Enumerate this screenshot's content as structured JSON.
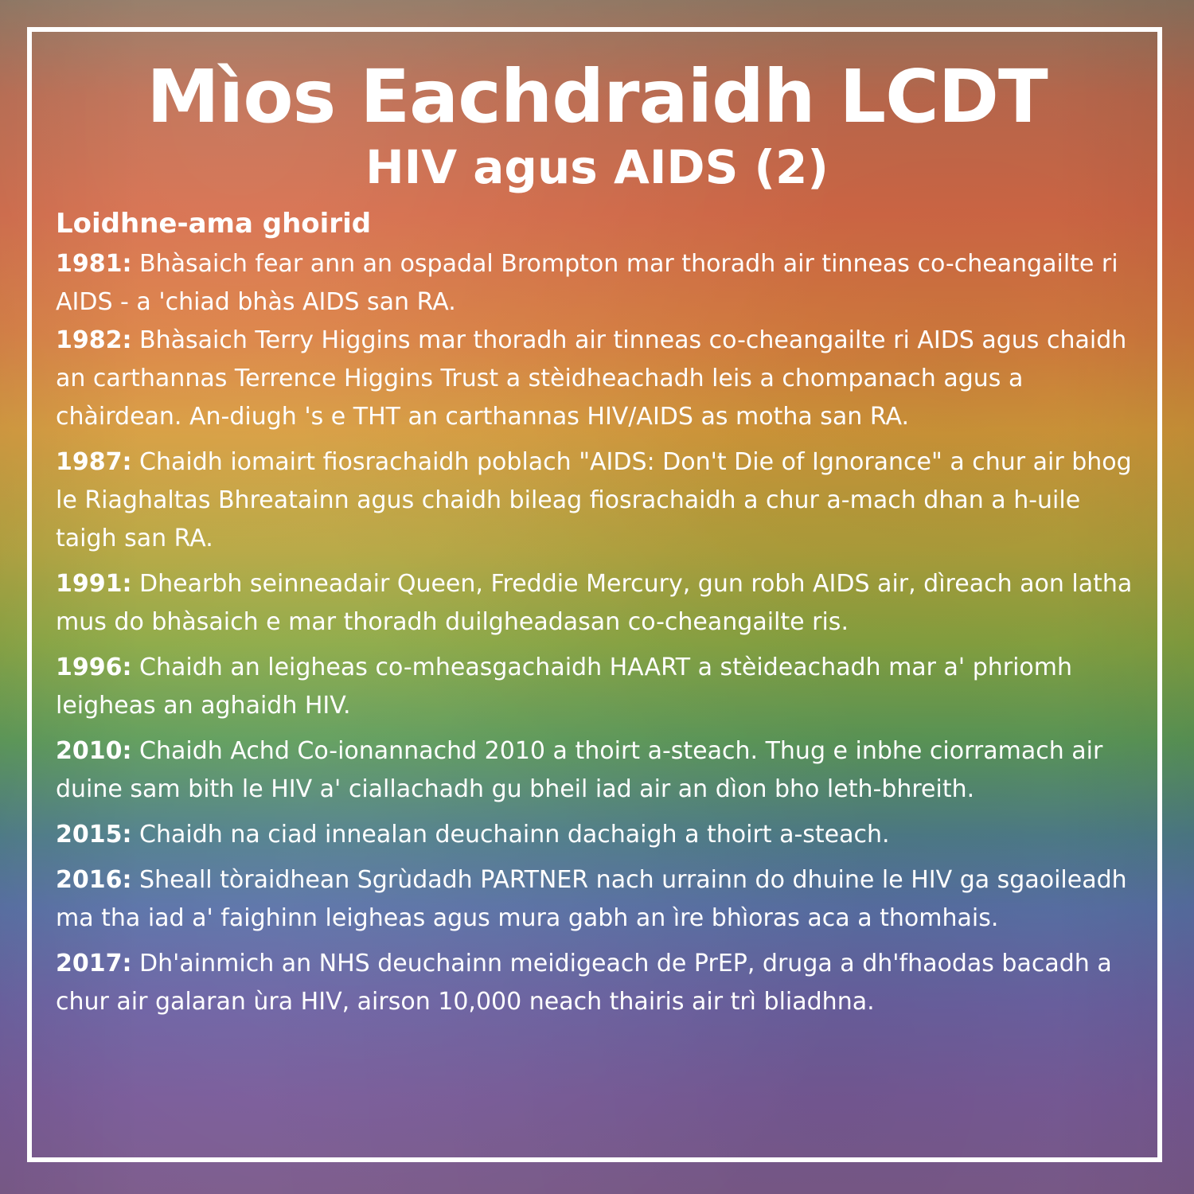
{
  "title": "Mìos Eachdraidh LCDT",
  "subtitle": "HIV agus AIDS (2)",
  "section_heading": "Loidhne-ama ghoirid",
  "timeline": [
    {
      "year": "1981:",
      "text": "Bhàsaich fear ann an ospadal Brompton mar thoradh air tinneas co-cheangailte ri AIDS - a 'chiad bhàs AIDS san RA."
    },
    {
      "year": "1982:",
      "text": "Bhàsaich Terry Higgins mar thoradh air tinneas co-cheangailte ri AIDS agus chaidh an carthannas Terrence Higgins Trust a stèidheachadh leis a chompanach agus a chàirdean. An-diugh 's e THT an carthannas HIV/AIDS as motha san RA."
    },
    {
      "year": "1987:",
      "text": "Chaidh iomairt fiosrachaidh poblach \"AIDS: Don't Die of Ignorance\" a chur air bhog le Riaghaltas Bhreatainn agus chaidh bileag fiosrachaidh a chur a-mach dhan a h-uile taigh san RA."
    },
    {
      "year": "1991:",
      "text": "Dhearbh seinneadair Queen, Freddie Mercury, gun robh AIDS air, dìreach aon latha mus do bhàsaich e mar thoradh duilgheadasan co-cheangailte ris."
    },
    {
      "year": "1996:",
      "text": "Chaidh an leigheas co-mheasgachaidh HAART a stèideachadh mar a' phriomh leigheas an aghaidh HIV."
    },
    {
      "year": "2010:",
      "text": "Chaidh Achd Co-ionannachd 2010 a thoirt a-steach. Thug e inbhe ciorramach air duine sam bith le HIV a' ciallachadh gu bheil iad air an dìon bho leth-bhreith."
    },
    {
      "year": "2015:",
      "text": "Chaidh na ciad innealan deuchainn dachaigh a thoirt a-steach."
    },
    {
      "year": "2016:",
      "text": "Sheall tòraidhean Sgrùdadh PARTNER nach urrainn do dhuine le HIV ga sgaoileadh ma tha iad a' faighinn leigheas agus mura gabh an ìre bhìoras aca a thomhais."
    },
    {
      "year": "2017:",
      "text": "Dh'ainmich an NHS deuchainn meidigeach de PrEP, druga a dh'fhaodas bacadh a chur air galaran ùra HIV, airson 10,000 neach thairis air trì bliadhna."
    }
  ],
  "colors": {
    "text": "#ffffff",
    "border": "#ffffff"
  }
}
